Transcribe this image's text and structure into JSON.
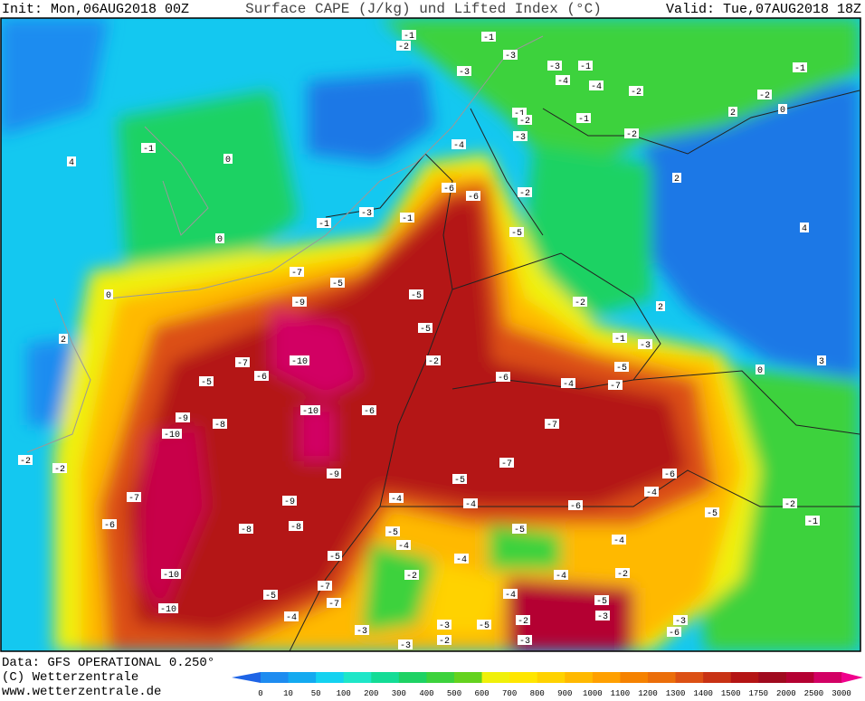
{
  "header": {
    "init": "Init: Mon,06AUG2018 00Z",
    "title": "Surface CAPE (J/kg) und Lifted Index (°C)",
    "valid": "Valid: Tue,07AUG2018 18Z"
  },
  "footer": {
    "data": "Data: GFS OPERATIONAL 0.250°",
    "copyright": "(C) Wetterzentrale",
    "url": "www.wetterzentrale.de"
  },
  "colorbar": {
    "labels": [
      "0",
      "10",
      "50",
      "100",
      "200",
      "300",
      "400",
      "500",
      "600",
      "700",
      "800",
      "900",
      "1000",
      "1100",
      "1200",
      "1300",
      "1400",
      "1500",
      "1750",
      "2000",
      "2500",
      "3000"
    ],
    "colors": [
      "#1e64e6",
      "#1e8cf0",
      "#14aaf0",
      "#14d2f0",
      "#1ee6c8",
      "#14dc96",
      "#1ed264",
      "#3cd23c",
      "#64d21e",
      "#f0f00a",
      "#ffe600",
      "#ffd200",
      "#ffb900",
      "#ffa000",
      "#f58200",
      "#eb6e0a",
      "#dc5014",
      "#c83214",
      "#b41414",
      "#a00a1e",
      "#b40032",
      "#d20064",
      "#f0008c"
    ]
  },
  "map_labels": [
    "-1",
    "-2",
    "-1",
    "-3",
    "-3",
    "-3",
    "-1",
    "-4",
    "-4",
    "-2",
    "-1",
    "-2",
    "2",
    "0",
    "-1",
    "-2",
    "-3",
    "-4",
    "-1",
    "-2",
    "-1",
    "0",
    "4",
    "2",
    "-6",
    "-6",
    "-2",
    "-3",
    "-1",
    "-1",
    "4",
    "0",
    "-5",
    "-7",
    "-5",
    "0",
    "-5",
    "-2",
    "-9",
    "2",
    "2",
    "-5",
    "-1",
    "-3",
    "-10",
    "-7",
    "-2",
    "-5",
    "0",
    "3",
    "-5",
    "-6",
    "-6",
    "-4",
    "-7",
    "-10",
    "-6",
    "-9",
    "-8",
    "-7",
    "-10",
    "-7",
    "-6",
    "-9",
    "-5",
    "-2",
    "-2",
    "-7",
    "-9",
    "-4",
    "-4",
    "-6",
    "-4",
    "-2",
    "-5",
    "-6",
    "-8",
    "-8",
    "-5",
    "-5",
    "-1",
    "-4",
    "-5",
    "-4",
    "-4",
    "-10",
    "-2",
    "-4",
    "-2",
    "-7",
    "-5",
    "-4",
    "-5",
    "-10",
    "-7",
    "-4",
    "-3",
    "-5",
    "-2",
    "-3",
    "-3",
    "-3",
    "-3",
    "-2",
    "-3",
    "-6"
  ]
}
